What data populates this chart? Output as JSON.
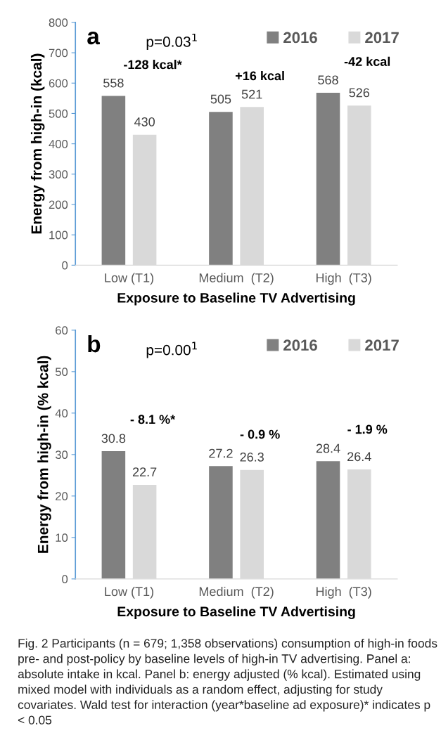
{
  "chart_data": [
    {
      "type": "bar",
      "title": "a",
      "xlabel": "Exposure to Baseline TV Advertising",
      "ylabel": "Energy from high-in (kcal)",
      "categories": [
        "Low (T1)",
        "Medium  (T2)",
        "High  (T3)"
      ],
      "series": [
        {
          "name": "2016",
          "color": "#808080",
          "values": [
            558,
            505,
            568
          ]
        },
        {
          "name": "2017",
          "color": "#d9d9d9",
          "values": [
            430,
            521,
            526
          ]
        }
      ],
      "ylim": [
        0,
        800
      ],
      "yticks": [
        0,
        100,
        200,
        300,
        400,
        500,
        600,
        700,
        800
      ],
      "grid": false,
      "legend": "top right",
      "data_labels": true,
      "annotations": [
        "p=0.03$^{1}$",
        "-128 kcal*",
        "+16 kcal",
        "-42 kcal"
      ]
    },
    {
      "type": "bar",
      "title": "b",
      "xlabel": "Exposure to Baseline TV Advertising",
      "ylabel": "Energy from high-in (% kcal)",
      "categories": [
        "Low (T1)",
        "Medium  (T2)",
        "High  (T3)"
      ],
      "series": [
        {
          "name": "2016",
          "color": "#808080",
          "values": [
            30.8,
            27.2,
            28.4
          ]
        },
        {
          "name": "2017",
          "color": "#d9d9d9",
          "values": [
            22.7,
            26.3,
            26.4
          ]
        }
      ],
      "ylim": [
        0,
        60
      ],
      "yticks": [
        0,
        10,
        20,
        30,
        40,
        50,
        60
      ],
      "grid": false,
      "legend": "top right",
      "data_labels": true,
      "annotations": [
        "p=0.00$^{1}$",
        "- 8.1 %*",
        "- 0.9 %",
        "- 1.9 %",
        "Fig. 2 Participants (n = 679; 1,358 observations) consumption of high-in foods pre- and post-policy by baseline levels of high-in TV advertising. Panel a: absolute intake in kcal. Panel b: energy adjusted (% kcal). Estimated using mixed model with individuals as a random effect, adjusting for study covariates. Wald test for interaction (year*baseline ad exposure)* indicates p < 0.05"
      ]
    }
  ]
}
